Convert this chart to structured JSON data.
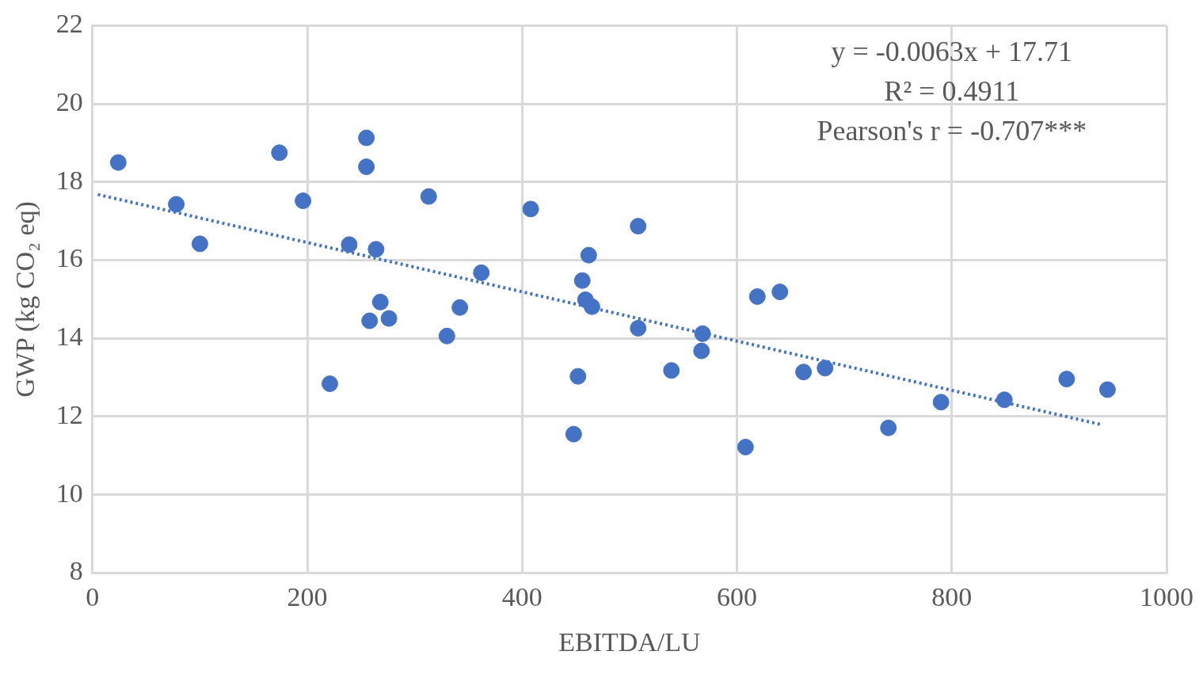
{
  "chart_data": {
    "type": "scatter",
    "xlabel": "EBITDA/LU",
    "ylabel": "GWP (kg CO₂ eq)",
    "xlim": [
      0,
      1000
    ],
    "xticks": [
      0,
      200,
      400,
      600,
      800,
      1000
    ],
    "ylim": [
      8,
      22
    ],
    "yticks": [
      8,
      10,
      12,
      14,
      16,
      18,
      20,
      22
    ],
    "grid": true,
    "legend": false,
    "marker": "circle",
    "annotations": [
      "y = -0.0063x + 17.71",
      "R² = 0.4911",
      "Pearson's r = -0.707***"
    ],
    "series": [
      {
        "color": "#4472c4",
        "x": [
          24,
          78,
          100,
          174,
          196,
          255,
          255,
          239,
          264,
          221,
          268,
          258,
          276,
          313,
          330,
          342,
          362,
          408,
          448,
          452,
          456,
          459,
          462,
          465,
          508,
          508,
          539,
          567,
          568,
          608,
          619,
          640,
          662,
          682,
          741,
          790,
          849,
          907,
          945
        ],
        "values": [
          18.5,
          17.43,
          16.42,
          18.75,
          17.52,
          19.13,
          18.39,
          16.4,
          16.28,
          12.84,
          14.93,
          14.45,
          14.51,
          17.63,
          14.06,
          14.79,
          15.68,
          17.31,
          11.55,
          13.03,
          15.48,
          14.99,
          16.13,
          14.81,
          16.87,
          14.26,
          13.18,
          13.68,
          14.12,
          11.22,
          15.07,
          15.19,
          13.14,
          13.24,
          11.71,
          12.37,
          12.43,
          12.96,
          12.69
        ]
      },
      {
        "type": "line",
        "color": "#4472c4",
        "marker": "none",
        "line_style": "dotted",
        "x": [
          5,
          940
        ],
        "values": [
          17.68,
          11.79
        ]
      }
    ]
  }
}
